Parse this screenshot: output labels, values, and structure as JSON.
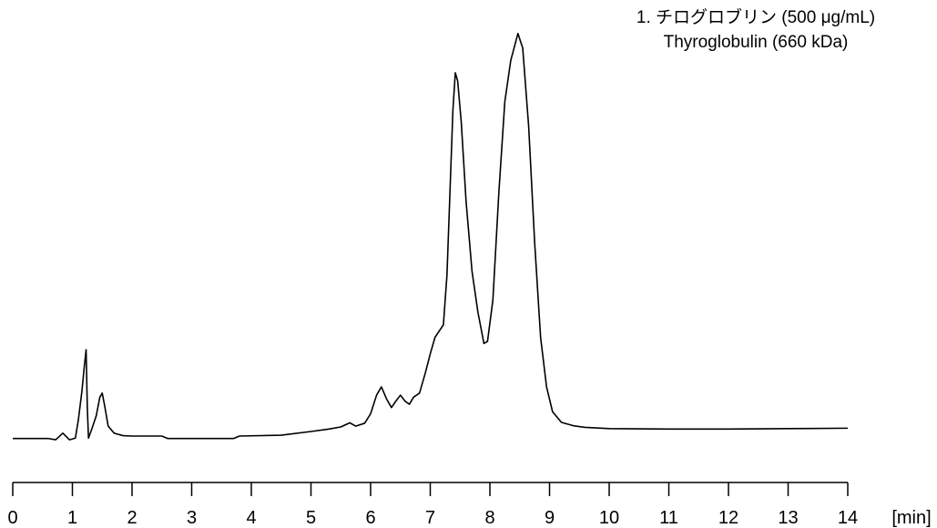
{
  "chart_data": {
    "type": "line",
    "x_unit": "[min]",
    "xlim": [
      0,
      14
    ],
    "ylim": [
      0,
      100
    ],
    "x_ticks": [
      0,
      1,
      2,
      3,
      4,
      5,
      6,
      7,
      8,
      9,
      10,
      11,
      12,
      13,
      14
    ],
    "legend": {
      "line1": "1. チログロブリン (500 μg/mL)",
      "line2": "Thyroglobulin (660 kDa)"
    },
    "series": [
      {
        "points": [
          [
            0.0,
            0.5
          ],
          [
            0.6,
            0.5
          ],
          [
            0.72,
            0.2
          ],
          [
            0.84,
            1.8
          ],
          [
            0.95,
            0.2
          ],
          [
            1.05,
            0.6
          ],
          [
            1.1,
            5.0
          ],
          [
            1.16,
            12.0
          ],
          [
            1.2,
            18.0
          ],
          [
            1.23,
            22.0
          ],
          [
            1.25,
            8.0
          ],
          [
            1.27,
            0.6
          ],
          [
            1.33,
            3.0
          ],
          [
            1.4,
            6.0
          ],
          [
            1.46,
            10.5
          ],
          [
            1.5,
            11.5
          ],
          [
            1.54,
            8.5
          ],
          [
            1.6,
            3.5
          ],
          [
            1.7,
            1.8
          ],
          [
            1.85,
            1.2
          ],
          [
            2.0,
            1.1
          ],
          [
            2.5,
            1.1
          ],
          [
            2.6,
            0.5
          ],
          [
            3.5,
            0.5
          ],
          [
            3.7,
            0.5
          ],
          [
            3.8,
            1.1
          ],
          [
            4.5,
            1.3
          ],
          [
            5.0,
            2.2
          ],
          [
            5.3,
            2.8
          ],
          [
            5.5,
            3.3
          ],
          [
            5.65,
            4.3
          ],
          [
            5.75,
            3.5
          ],
          [
            5.9,
            4.2
          ],
          [
            6.0,
            6.5
          ],
          [
            6.1,
            11.0
          ],
          [
            6.18,
            13.0
          ],
          [
            6.27,
            10.0
          ],
          [
            6.35,
            8.0
          ],
          [
            6.42,
            9.5
          ],
          [
            6.5,
            11.0
          ],
          [
            6.58,
            9.5
          ],
          [
            6.65,
            8.8
          ],
          [
            6.72,
            10.5
          ],
          [
            6.82,
            11.5
          ],
          [
            6.92,
            16.5
          ],
          [
            7.0,
            21.0
          ],
          [
            7.08,
            25.0
          ],
          [
            7.15,
            26.5
          ],
          [
            7.22,
            28.0
          ],
          [
            7.28,
            40.0
          ],
          [
            7.33,
            60.0
          ],
          [
            7.38,
            80.0
          ],
          [
            7.42,
            89.0
          ],
          [
            7.46,
            87.0
          ],
          [
            7.52,
            77.0
          ],
          [
            7.6,
            58.0
          ],
          [
            7.7,
            41.0
          ],
          [
            7.8,
            31.0
          ],
          [
            7.9,
            23.5
          ],
          [
            7.96,
            24.0
          ],
          [
            8.05,
            34.0
          ],
          [
            8.15,
            60.0
          ],
          [
            8.25,
            82.0
          ],
          [
            8.35,
            92.0
          ],
          [
            8.47,
            98.5
          ],
          [
            8.55,
            95.0
          ],
          [
            8.65,
            76.0
          ],
          [
            8.75,
            48.0
          ],
          [
            8.85,
            25.0
          ],
          [
            8.95,
            13.0
          ],
          [
            9.05,
            7.0
          ],
          [
            9.2,
            4.4
          ],
          [
            9.4,
            3.6
          ],
          [
            9.6,
            3.2
          ],
          [
            10.0,
            2.9
          ],
          [
            11.0,
            2.8
          ],
          [
            12.0,
            2.8
          ],
          [
            13.0,
            2.9
          ],
          [
            14.0,
            3.0
          ]
        ]
      }
    ]
  }
}
